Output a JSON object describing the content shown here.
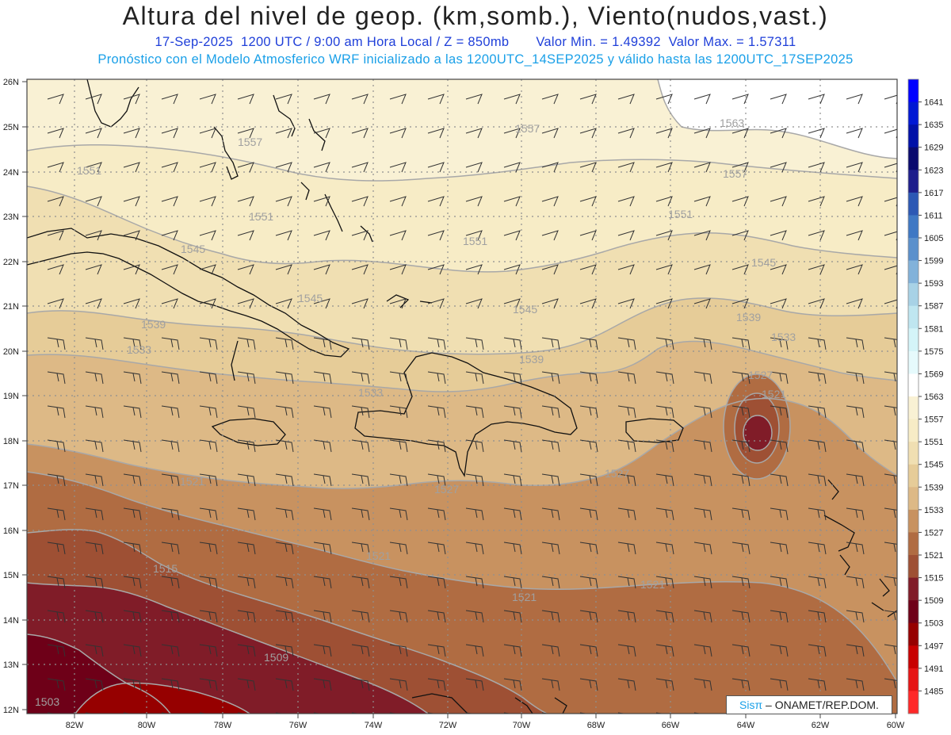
{
  "header": {
    "title": "Altura del nivel de geop. (km,somb.), Viento(nudos,vast.)",
    "date": "17-Sep-2025",
    "time": "1200 UTC / 9:00 am Hora Local / Z = 850mb",
    "min": "Valor Min. = 1.49392",
    "max": "Valor Max. = 1.57311",
    "model": "Pronóstico con el Modelo Atmosferico WRF inicializado a las 1200UTC_14SEP2025 y válido hasta las  1200UTC_17SEP2025"
  },
  "axes": {
    "lat_labels": [
      "26N",
      "25N",
      "24N",
      "23N",
      "22N",
      "21N",
      "20N",
      "19N",
      "18N",
      "17N",
      "16N",
      "15N",
      "14N",
      "13N",
      "12N"
    ],
    "lon_labels": [
      "82W",
      "80W",
      "78W",
      "76W",
      "74W",
      "72W",
      "70W",
      "68W",
      "66W",
      "64W",
      "62W",
      "60W"
    ]
  },
  "colorbar": {
    "labels": [
      "1641",
      "1635",
      "1629",
      "1623",
      "1617",
      "1611",
      "1605",
      "1599",
      "1593",
      "1587",
      "1581",
      "1575",
      "1569",
      "1563",
      "1557",
      "1551",
      "1545",
      "1539",
      "1533",
      "1527",
      "1521",
      "1515",
      "1509",
      "1503",
      "1497",
      "1491",
      "1485"
    ],
    "colors": [
      "#0000ff",
      "#0018d4",
      "#0010a8",
      "#0a0a6e",
      "#1e1e8c",
      "#2c58b4",
      "#3f78c4",
      "#5b90cc",
      "#82b2da",
      "#a8d2e6",
      "#bfe6f0",
      "#d4f4f8",
      "#e6fafc",
      "#ffffff",
      "#f9f1d4",
      "#f7ecc6",
      "#f0dfb2",
      "#e6cc98",
      "#ddb986",
      "#c89260",
      "#b06c42",
      "#9e5034",
      "#801c28",
      "#6e0018",
      "#960000",
      "#c80000",
      "#e61414",
      "#ff2828"
    ]
  },
  "contour_labels": [
    "1557",
    "1563",
    "1551",
    "1557",
    "1557",
    "1551",
    "1551",
    "1551",
    "1545",
    "1545",
    "1545",
    "1545",
    "1539",
    "1539",
    "1539",
    "1533",
    "1533",
    "1533",
    "1527",
    "1527",
    "1527",
    "1521",
    "1521",
    "1521",
    "1521",
    "1521",
    "1515",
    "1509",
    "1503"
  ],
  "credit": {
    "sis": "Sisπ",
    "org": "– ONAMET/REP.DOM."
  }
}
